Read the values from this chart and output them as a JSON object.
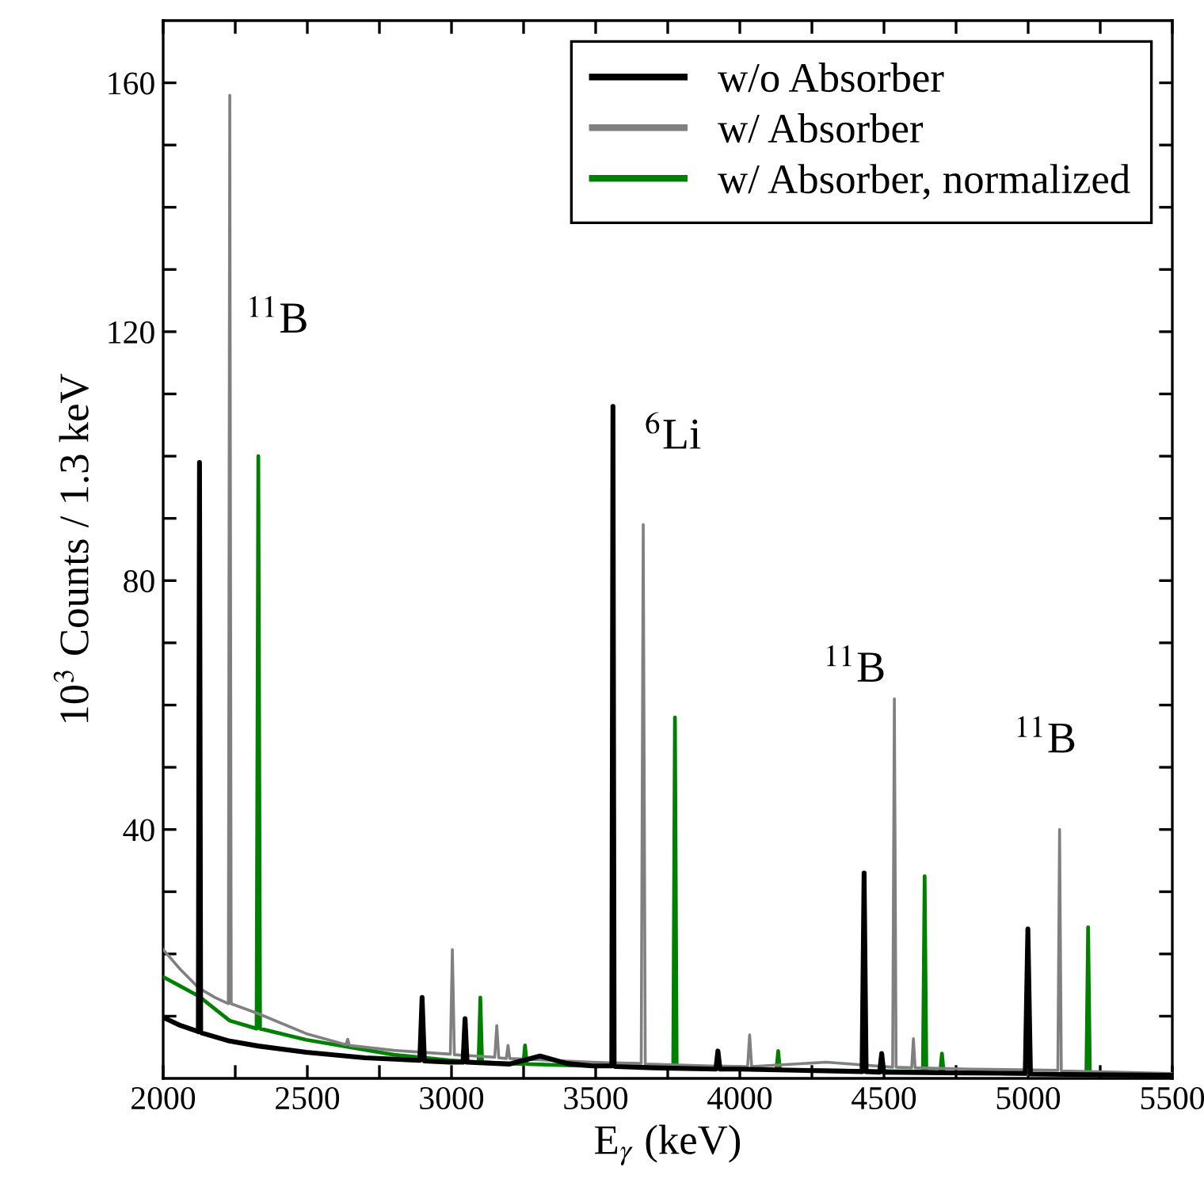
{
  "chart_data": {
    "type": "line",
    "xlabel": "E$_{γ}$ (keV)",
    "ylabel": "10$^{3}$ Counts / 1.3 keV",
    "xlim": [
      2000,
      5500
    ],
    "ylim": [
      0,
      170
    ],
    "xticks": [
      2000,
      {
        "value": 2250,
        "label": null
      },
      2500,
      {
        "value": 2750,
        "label": null
      },
      3000,
      {
        "value": 3250,
        "label": null
      },
      3500,
      {
        "value": 3750,
        "label": null
      },
      4000,
      {
        "value": 4250,
        "label": null
      },
      4500,
      {
        "value": 4750,
        "label": null
      },
      5000,
      {
        "value": 5250,
        "label": null
      },
      5500
    ],
    "yticks": [
      {
        "value": 10,
        "label": null
      },
      {
        "value": 20,
        "label": null
      },
      {
        "value": 30,
        "label": null
      },
      40,
      {
        "value": 50,
        "label": null
      },
      {
        "value": 60,
        "label": null
      },
      {
        "value": 70,
        "label": null
      },
      80,
      {
        "value": 90,
        "label": null
      },
      {
        "value": 100,
        "label": null
      },
      {
        "value": 110,
        "label": null
      },
      120,
      {
        "value": 130,
        "label": null
      },
      {
        "value": 140,
        "label": null
      },
      {
        "value": 150,
        "label": null
      },
      160
    ],
    "legend": "top right",
    "grid": false,
    "marker": "none",
    "line_style": "solid",
    "series": [
      {
        "name": "w/o Absorber",
        "color": "#000000",
        "x": [
          2000,
          2060,
          2118,
          2122,
          2126,
          2130,
          2134,
          2230,
          2330,
          2496,
          2700,
          2890,
          2898,
          2906,
          2992,
          3040,
          3047,
          3054,
          3200,
          3307,
          3400,
          3488,
          3550,
          3556,
          3560,
          3564,
          3570,
          3700,
          3917,
          3924,
          3931,
          4000,
          4300,
          4424,
          4431,
          4438,
          4485,
          4492,
          4499,
          4700,
          4990,
          4999,
          5008,
          5200,
          5500
        ],
        "values": [
          9.8,
          8.5,
          7.6,
          7.5,
          99,
          7.5,
          7.3,
          6,
          5.2,
          4.2,
          3.3,
          2.9,
          13,
          2.8,
          2.6,
          2.6,
          9.6,
          2.6,
          2.3,
          3.6,
          2.4,
          2,
          2,
          2,
          108,
          2,
          1.9,
          1.7,
          1.5,
          4.4,
          1.5,
          1.5,
          1.2,
          1.1,
          33,
          1.1,
          1,
          4,
          1,
          0.9,
          0.8,
          24,
          0.7,
          0.6,
          0.5
        ]
      },
      {
        "name": "w/ Absorber",
        "color": "#808080",
        "x": [
          2000,
          2060,
          2124,
          2180,
          2226,
          2231,
          2236,
          2330,
          2496,
          2634,
          2640,
          2646,
          2800,
          2996,
          3003,
          3010,
          3150,
          3157,
          3164,
          3190,
          3196,
          3202,
          3488,
          3658,
          3665,
          3672,
          3900,
          4027,
          4034,
          4041,
          4300,
          4530,
          4536,
          4542,
          4596,
          4602,
          4608,
          4800,
          5103,
          5109,
          5115,
          5300,
          5500
        ],
        "values": [
          20.7,
          17.5,
          14.5,
          13,
          12,
          158,
          12,
          10.4,
          7.2,
          5.4,
          6.3,
          5.3,
          4.5,
          3.9,
          20.7,
          3.8,
          3.4,
          8.5,
          3.3,
          3.2,
          5.3,
          3.2,
          2.6,
          2.4,
          89,
          2.3,
          2,
          1.9,
          7,
          1.9,
          2.6,
          1.8,
          61,
          1.8,
          1.7,
          6.4,
          1.7,
          1.5,
          1.3,
          40,
          1.2,
          1,
          0.8
        ]
      },
      {
        "name": "w/ Absorber, normalized",
        "color": "#008000",
        "x": [
          2000,
          2060,
          2124,
          2230,
          2324,
          2330,
          2336,
          2496,
          2800,
          2992,
          3094,
          3100,
          3106,
          3249,
          3255,
          3261,
          3488,
          3769,
          3775,
          3781,
          4000,
          4127,
          4133,
          4139,
          4300,
          4635,
          4641,
          4647,
          4695,
          4701,
          4707,
          4900,
          5202,
          5208,
          5214,
          5500
        ],
        "values": [
          16.3,
          14.8,
          13.2,
          9.3,
          8,
          100,
          8,
          6.2,
          3.8,
          2.9,
          2.6,
          13,
          2.6,
          2.3,
          5.3,
          2.3,
          2,
          1.8,
          58,
          1.8,
          1.5,
          1.4,
          4.4,
          1.4,
          1.3,
          1.1,
          32.5,
          1.1,
          1,
          4,
          1,
          0.8,
          0.7,
          24.3,
          0.7,
          0.5
        ]
      }
    ],
    "annotations": [
      "$^{11}$B",
      "$^{6}$Li",
      "$^{11}$B",
      "$^{11}$B"
    ]
  }
}
